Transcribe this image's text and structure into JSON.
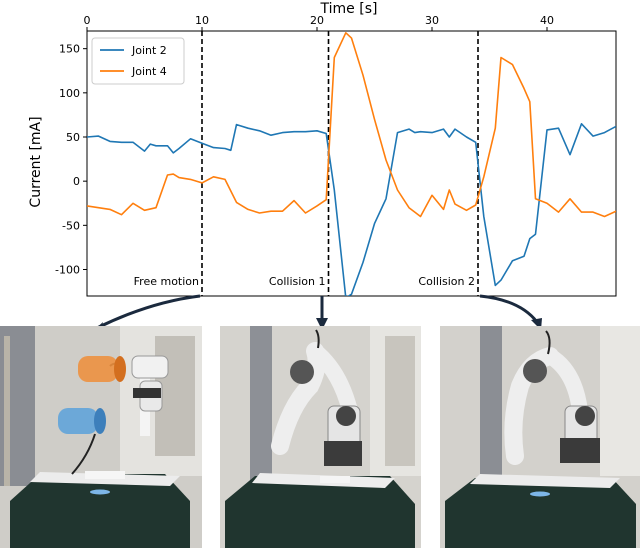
{
  "chart_data": {
    "type": "line",
    "xlabel": "Time [s]",
    "ylabel": "Current [mA]",
    "xlim": [
      0,
      46
    ],
    "ylim": [
      -130,
      170
    ],
    "xticks": [
      0,
      10,
      20,
      30,
      40
    ],
    "yticks": [
      -100,
      -50,
      0,
      50,
      100,
      150
    ],
    "x_axis_position": "top",
    "grid": false,
    "legend_position": "top-left",
    "series": [
      {
        "name": "Joint 2",
        "color": "#1f77b4",
        "x": [
          0,
          1,
          2,
          3,
          4,
          5,
          5.5,
          6,
          7,
          7.5,
          8,
          9,
          10,
          11,
          12,
          12.5,
          13,
          14,
          15,
          16,
          17,
          18,
          19,
          20,
          20.8,
          21.5,
          22.5,
          23,
          24,
          25,
          26,
          27,
          28,
          28.5,
          29,
          30,
          31,
          31.5,
          32,
          33,
          33.8,
          34.5,
          35.5,
          36,
          37,
          38,
          38.5,
          39,
          40,
          41,
          42,
          43,
          44,
          45,
          46
        ],
        "y": [
          50,
          51,
          45,
          44,
          44,
          34,
          42,
          40,
          40,
          32,
          37,
          48,
          43,
          38,
          37,
          35,
          64,
          60,
          57,
          52,
          55,
          56,
          56,
          57,
          54,
          -10,
          -132,
          -128,
          -92,
          -48,
          -20,
          55,
          59,
          55,
          56,
          55,
          59,
          50,
          59,
          50,
          44,
          -40,
          -118,
          -112,
          -90,
          -85,
          -65,
          -60,
          58,
          60,
          30,
          65,
          51,
          55,
          62
        ]
      },
      {
        "name": "Joint 4",
        "color": "#ff7f0e",
        "x": [
          0,
          1,
          2,
          3,
          4,
          5,
          6,
          7,
          7.5,
          8,
          9,
          10,
          11,
          12,
          13,
          14,
          15,
          16,
          17,
          18,
          19,
          20,
          20.8,
          21.5,
          22.5,
          23,
          24,
          25,
          26,
          27,
          28,
          28.5,
          29,
          30,
          31,
          31.5,
          32,
          33,
          33.8,
          34.5,
          35.5,
          36,
          37,
          38,
          38.5,
          39,
          40,
          41,
          42,
          43,
          44,
          45,
          46
        ],
        "y": [
          -28,
          -30,
          -32,
          -38,
          -25,
          -33,
          -30,
          7,
          8,
          4,
          2,
          -2,
          5,
          2,
          -24,
          -32,
          -36,
          -34,
          -34,
          -22,
          -36,
          -28,
          -21,
          140,
          168,
          162,
          120,
          70,
          24,
          -10,
          -30,
          -35,
          -40,
          -16,
          -32,
          -10,
          -26,
          -33,
          -27,
          5,
          60,
          140,
          132,
          105,
          90,
          -20,
          -25,
          -35,
          -20,
          -35,
          -35,
          -40,
          -34
        ]
      }
    ],
    "annotations": [
      {
        "x": 10,
        "label": "Free motion"
      },
      {
        "x": 21,
        "label": "Collision 1"
      },
      {
        "x": 34,
        "label": "Collision 2"
      }
    ]
  }
}
